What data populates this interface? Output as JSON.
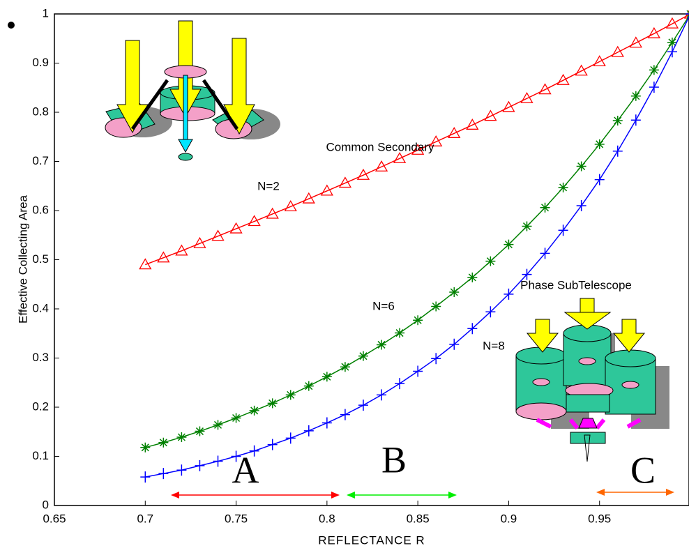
{
  "chart_data": {
    "type": "line",
    "x_label": "REFLECTANCE R",
    "y_label": "Effective Collecting Area",
    "x": [
      0.7,
      0.71,
      0.72,
      0.73,
      0.74,
      0.75,
      0.76,
      0.77,
      0.78,
      0.79,
      0.8,
      0.81,
      0.82,
      0.83,
      0.84,
      0.85,
      0.86,
      0.87,
      0.88,
      0.89,
      0.9,
      0.91,
      0.92,
      0.93,
      0.94,
      0.95,
      0.96,
      0.97,
      0.98,
      0.99,
      1
    ],
    "series": [
      {
        "name": "N=2",
        "color": "#ff0000",
        "marker": "triangle",
        "values": [
          0.49,
          0.504,
          0.518,
          0.533,
          0.548,
          0.563,
          0.578,
          0.593,
          0.608,
          0.624,
          0.64,
          0.656,
          0.672,
          0.689,
          0.706,
          0.723,
          0.74,
          0.757,
          0.774,
          0.792,
          0.81,
          0.828,
          0.846,
          0.865,
          0.884,
          0.903,
          0.922,
          0.941,
          0.96,
          0.98,
          1
        ]
      },
      {
        "name": "N=6",
        "color": "#008000",
        "marker": "asterisk",
        "values": [
          0.118,
          0.128,
          0.139,
          0.151,
          0.164,
          0.178,
          0.193,
          0.208,
          0.225,
          0.243,
          0.262,
          0.282,
          0.304,
          0.327,
          0.351,
          0.377,
          0.405,
          0.434,
          0.464,
          0.497,
          0.531,
          0.568,
          0.606,
          0.647,
          0.69,
          0.735,
          0.783,
          0.833,
          0.886,
          0.942,
          1
        ]
      },
      {
        "name": "N=8",
        "color": "#0000ff",
        "marker": "plus",
        "values": [
          0.058,
          0.065,
          0.072,
          0.081,
          0.09,
          0.1,
          0.111,
          0.124,
          0.137,
          0.152,
          0.168,
          0.185,
          0.204,
          0.225,
          0.248,
          0.273,
          0.299,
          0.328,
          0.36,
          0.394,
          0.43,
          0.47,
          0.513,
          0.56,
          0.61,
          0.663,
          0.721,
          0.784,
          0.851,
          0.923,
          1
        ]
      }
    ],
    "xlim": [
      0.65,
      1.0
    ],
    "ylim": [
      0,
      1
    ],
    "xticks": [
      0.65,
      0.7,
      0.75,
      0.8,
      0.85,
      0.9,
      0.95
    ],
    "yticks": [
      0,
      0.1,
      0.2,
      0.3,
      0.4,
      0.5,
      0.6,
      0.7,
      0.8,
      0.9,
      1
    ],
    "annotations": [
      "Common Secondary",
      "Phase SubTelescope",
      "A",
      "B",
      "C"
    ]
  }
}
